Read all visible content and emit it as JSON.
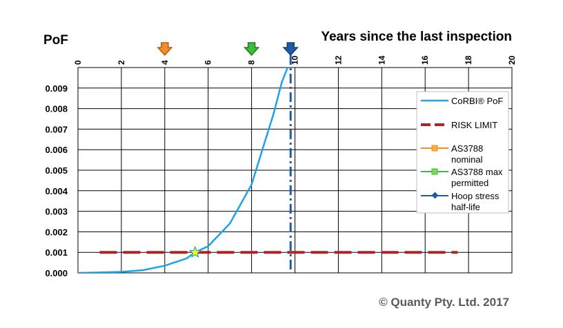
{
  "chart_data": {
    "type": "line",
    "y_axis_title": "PoF",
    "x_axis_title": "Years since the last inspection",
    "x_axis_position": "top",
    "x_range": [
      0,
      20
    ],
    "x_ticks": [
      "0",
      "2",
      "4",
      "6",
      "8",
      "10",
      "12",
      "14",
      "16",
      "18",
      "20"
    ],
    "y_range": [
      0,
      0.01
    ],
    "y_ticks": [
      "0.000",
      "0.001",
      "0.002",
      "0.003",
      "0.004",
      "0.005",
      "0.006",
      "0.007",
      "0.008",
      "0.009"
    ],
    "grid": true,
    "series": [
      {
        "name": "CoRBI® PoF",
        "style": "line",
        "color": "#1aa3e8",
        "x": [
          0,
          1,
          2,
          3,
          4,
          5,
          5.4,
          6,
          7,
          8,
          8.5,
          9,
          9.4,
          9.7
        ],
        "y": [
          0,
          2e-05,
          5e-05,
          0.00013,
          0.00035,
          0.0007,
          0.001,
          0.0013,
          0.0024,
          0.0043,
          0.006,
          0.0077,
          0.0093,
          0.0101
        ]
      },
      {
        "name": "RISK LIMIT",
        "style": "dashed",
        "color": "#b22222",
        "x": [
          1,
          17.5
        ],
        "y": [
          0.001,
          0.001
        ]
      },
      {
        "name": "AS3788 nominal",
        "style": "marker-arrow",
        "color": "#f28c28",
        "x": [
          4
        ]
      },
      {
        "name": "AS3788 max permitted",
        "style": "marker-arrow",
        "color": "#3dbd3d",
        "x": [
          8
        ]
      },
      {
        "name": "Hoop stress half-life",
        "style": "dash-dot-vertical",
        "color": "#1f5aa6",
        "x": [
          9.8
        ]
      }
    ],
    "annotations": [
      {
        "type": "star",
        "x": 5.4,
        "y": 0.001,
        "fill": "#ffff00",
        "stroke": "#2aa0c8"
      }
    ],
    "legend": {
      "placement": "right",
      "items": [
        "CoRBI® PoF",
        "RISK LIMIT",
        "AS3788 nominal",
        "AS3788 max permitted",
        "Hoop stress half-life"
      ]
    }
  },
  "copyright": "© Quanty Pty. Ltd. 2017"
}
